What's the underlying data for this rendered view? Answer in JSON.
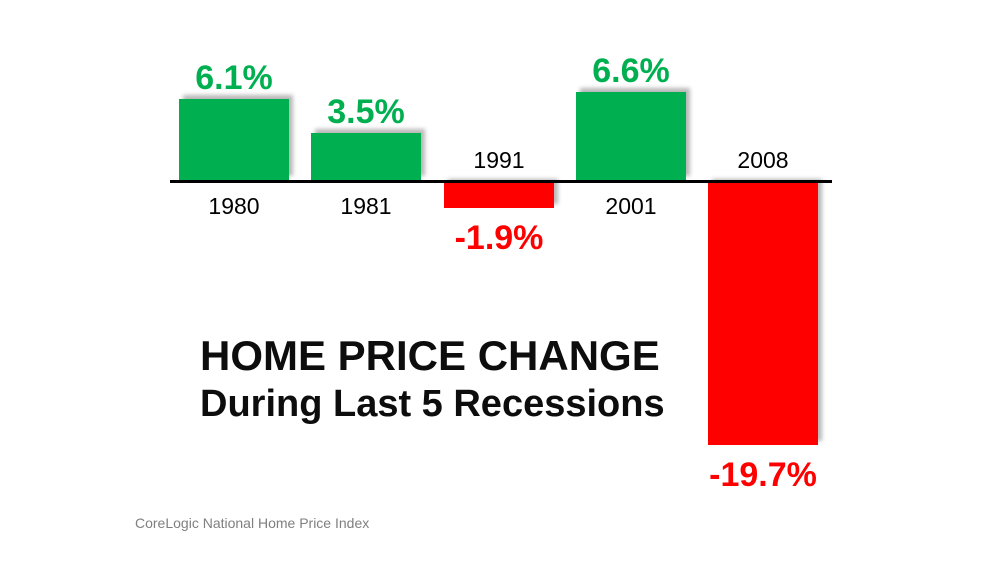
{
  "chart_data": {
    "type": "bar",
    "title": "HOME PRICE CHANGE",
    "subtitle": "During Last 5 Recessions",
    "source": "CoreLogic National Home Price Index",
    "categories": [
      "1980",
      "1981",
      "1991",
      "2001",
      "2008"
    ],
    "values": [
      6.1,
      3.5,
      -1.9,
      6.6,
      -19.7
    ],
    "value_labels": [
      "6.1%",
      "3.5%",
      "-1.9%",
      "6.6%",
      "-19.7%"
    ],
    "ylim": [
      -20,
      7
    ],
    "grid": false,
    "legend": false,
    "baseline": 0,
    "colors": {
      "positive": "#00B050",
      "negative": "#FF0000",
      "axis": "#000000",
      "year_label": "#000000",
      "title_text": "#0d0d0d",
      "source_text": "#7f7f7f",
      "background": "#ffffff"
    }
  }
}
